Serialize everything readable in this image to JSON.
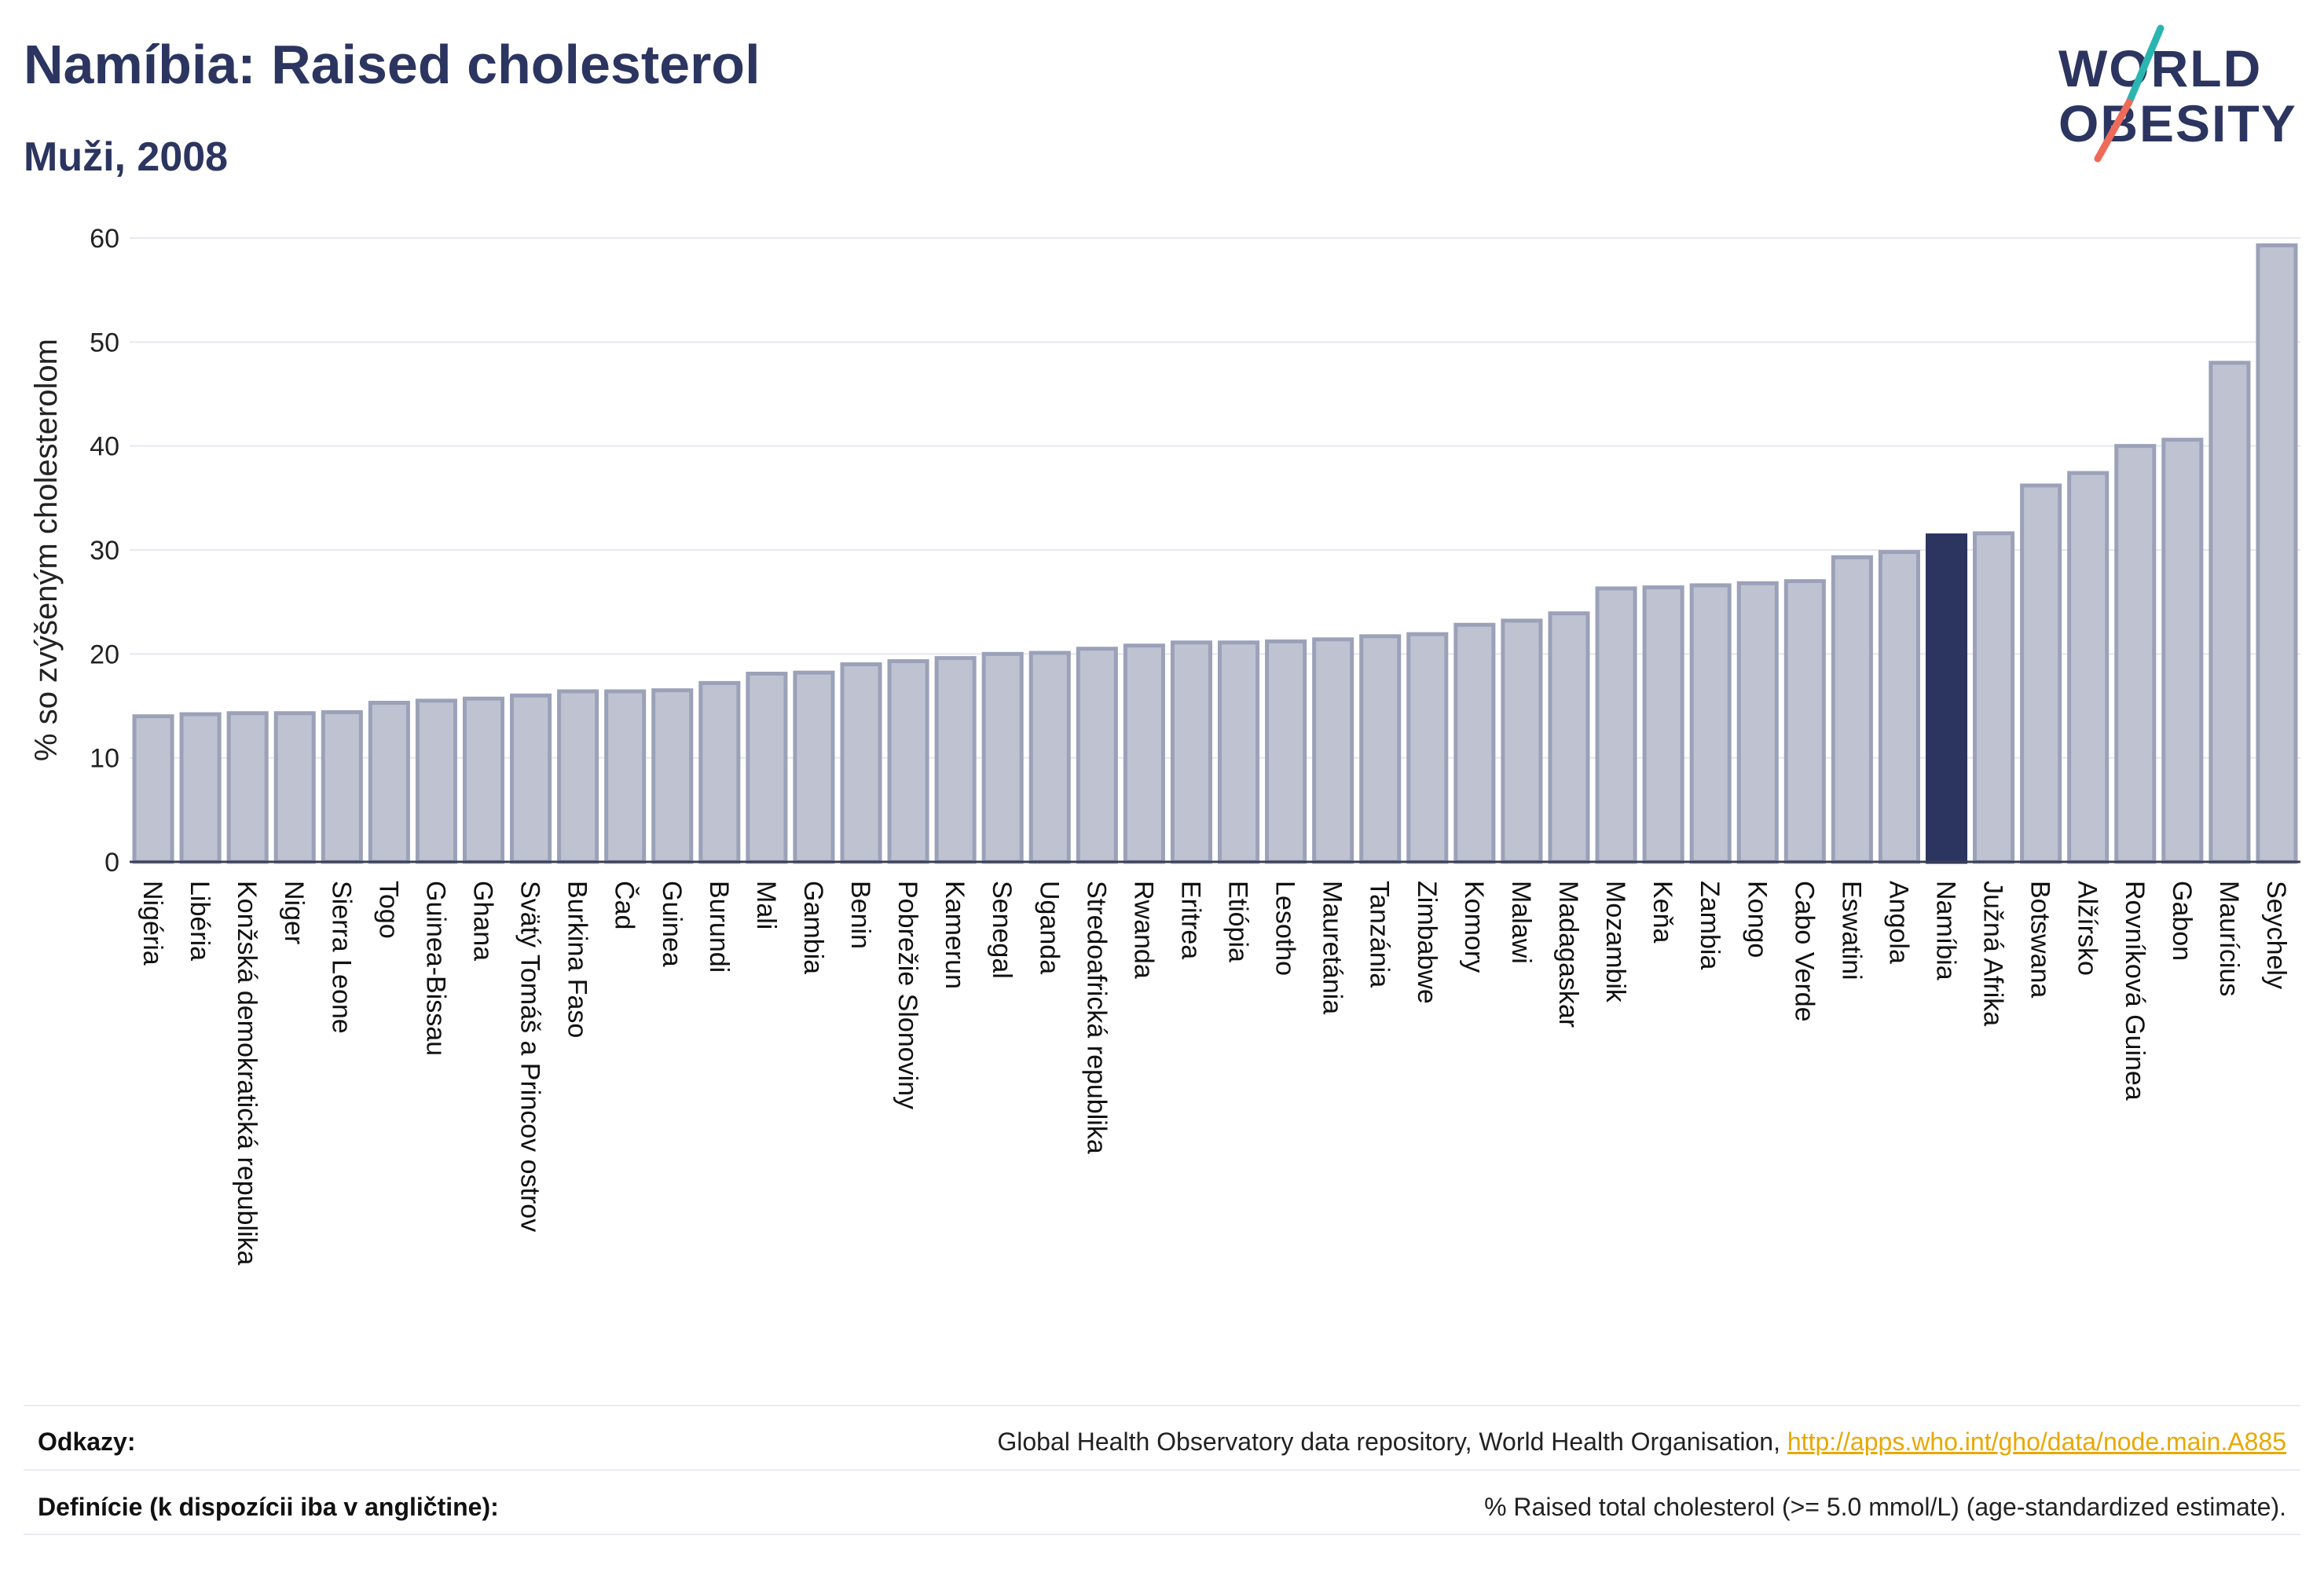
{
  "header": {
    "title": "Namíbia: Raised cholesterol",
    "subtitle": "Muži, 2008"
  },
  "logo": {
    "line1": "WORLD",
    "line2": "OBESITY"
  },
  "chart_data": {
    "type": "bar",
    "ylabel": "% so zvýšeným cholesterolom",
    "ylim": [
      0,
      62
    ],
    "yticks": [
      0,
      10,
      20,
      30,
      40,
      50,
      60
    ],
    "grid": true,
    "highlight": "Namíbia",
    "categories": [
      "Nigéria",
      "Libéria",
      "Konžská demokratická republika",
      "Niger",
      "Sierra Leone",
      "Togo",
      "Guinea-Bissau",
      "Ghana",
      "Svätý Tomáš a Princov ostrov",
      "Burkina Faso",
      "Čad",
      "Guinea",
      "Burundi",
      "Mali",
      "Gambia",
      "Benin",
      "Pobrežie Slonoviny",
      "Kamerun",
      "Senegal",
      "Uganda",
      "Stredoafrická republika",
      "Rwanda",
      "Eritrea",
      "Etiópia",
      "Lesotho",
      "Mauretánia",
      "Tanzánia",
      "Zimbabwe",
      "Komory",
      "Malawi",
      "Madagaskar",
      "Mozambik",
      "Keňa",
      "Zambia",
      "Kongo",
      "Cabo Verde",
      "Eswatini",
      "Angola",
      "Namíbia",
      "Južná Afrika",
      "Botswana",
      "Alžírsko",
      "Rovníková Guinea",
      "Gabon",
      "Maurícius",
      "Seychely"
    ],
    "values": [
      14.0,
      14.2,
      14.3,
      14.3,
      14.4,
      15.3,
      15.5,
      15.7,
      16.0,
      16.4,
      16.4,
      16.5,
      17.2,
      18.1,
      18.2,
      19.0,
      19.3,
      19.6,
      20.0,
      20.1,
      20.5,
      20.8,
      21.1,
      21.1,
      21.2,
      21.4,
      21.7,
      21.9,
      22.8,
      23.2,
      23.9,
      26.3,
      26.4,
      26.6,
      26.8,
      27.0,
      29.3,
      29.8,
      31.4,
      31.6,
      36.2,
      37.4,
      40.0,
      40.6,
      48.0,
      59.3
    ],
    "colors": {
      "bar": "#bfc3d1",
      "bar_edge": "#9ba1b8",
      "highlight": "#2b3560"
    }
  },
  "footer": {
    "refs_label": "Odkazy:",
    "refs_text": "Global Health Observatory data repository, World Health Organisation, ",
    "refs_link": "http://apps.who.int/gho/data/node.main.A885",
    "def_label": "Definície (k dispozícii iba v angličtine):",
    "def_text": "% Raised total cholesterol (>= 5.0 mmol/L) (age-standardized estimate)."
  }
}
